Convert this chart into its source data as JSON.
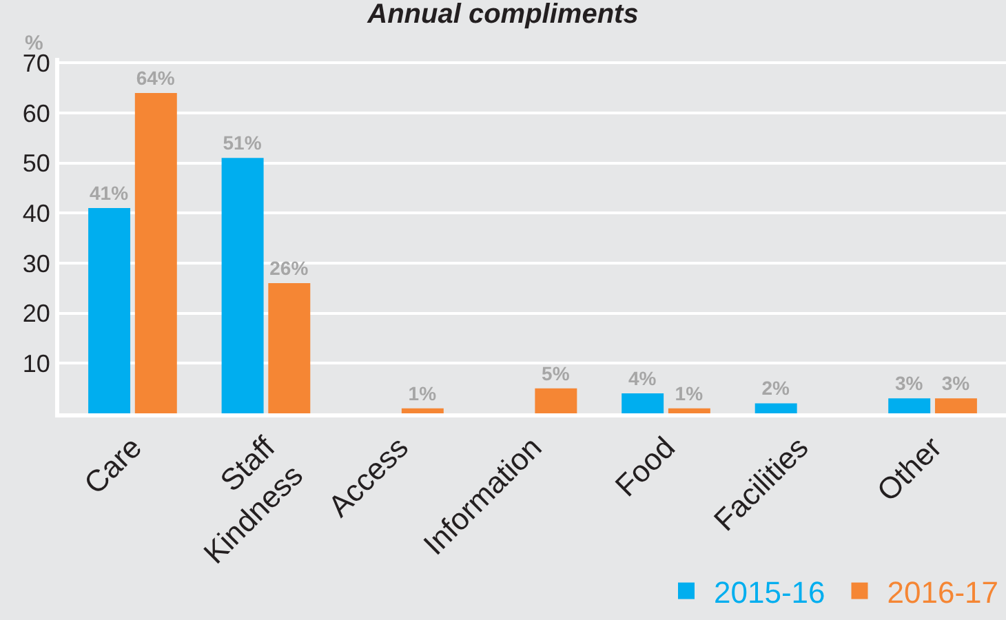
{
  "chart_data": {
    "type": "bar",
    "title": "Annual compliments",
    "ylabel": "%",
    "categories": [
      "Care",
      "Staff\nKindness",
      "Access",
      "Information",
      "Food",
      "Facilities",
      "Other"
    ],
    "series": [
      {
        "name": "2015-16",
        "color": "#00aeef",
        "values": [
          41,
          51,
          null,
          null,
          4,
          2,
          3
        ],
        "value_labels": [
          "41%",
          "51%",
          null,
          null,
          "4%",
          "2%",
          "3%"
        ]
      },
      {
        "name": "2016-17",
        "color": "#f58634",
        "values": [
          64,
          26,
          1,
          5,
          1,
          null,
          3
        ],
        "value_labels": [
          "64%",
          "26%",
          "1%",
          "5%",
          "1%",
          null,
          "3%"
        ]
      }
    ],
    "ylim": [
      0,
      71
    ],
    "yticks": [
      10,
      20,
      30,
      40,
      50,
      60,
      70
    ],
    "grid": "y",
    "legend": "bottom right"
  }
}
